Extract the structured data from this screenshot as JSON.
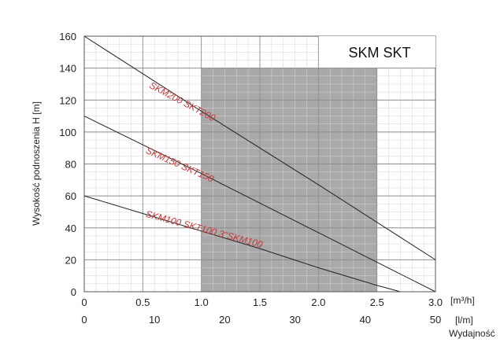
{
  "chart_data": {
    "type": "line",
    "title": "SKM SKT",
    "ylabel": "Wysokość podnoszenia H [m]",
    "xlabel": "Wydajność",
    "x_unit_top": "[m³/h]",
    "x_unit_bottom": "[l/m]",
    "xlim": [
      0,
      3.0
    ],
    "ylim": [
      0,
      160
    ],
    "grid": true,
    "y_ticks": [
      "0",
      "20",
      "40",
      "60",
      "80",
      "100",
      "120",
      "140",
      "160"
    ],
    "x_ticks_top": [
      "0",
      "0.5",
      "1.0",
      "1.5",
      "2.0",
      "2.5",
      "3.0"
    ],
    "x_ticks_bottom": [
      "0",
      "10",
      "20",
      "30",
      "40",
      "50"
    ],
    "shaded_range": {
      "x": [
        1.0,
        2.5
      ],
      "y": [
        0,
        140
      ],
      "color": "#a9a9a9"
    },
    "series": [
      {
        "name": "SKM200 SKT200",
        "x": [
          0,
          1.0,
          2.0,
          3.0
        ],
        "y": [
          160,
          113,
          67,
          20
        ],
        "label_angle": 28
      },
      {
        "name": "SKM150 SKT150",
        "x": [
          0,
          1.0,
          2.0,
          3.0
        ],
        "y": [
          110,
          74,
          37,
          0
        ],
        "label_angle": 24
      },
      {
        "name": "SKM100 SKT100  3\"SKM100",
        "x": [
          0,
          0.5,
          1.0,
          1.5,
          2.0,
          2.5,
          2.7
        ],
        "y": [
          60,
          49,
          38,
          27,
          15,
          4,
          0
        ],
        "label_angle": 15
      }
    ],
    "colors": {
      "line": "#222222",
      "series_label": "#c23b3b",
      "shade": "#a9a9a9",
      "grid_major": "#8c8c8c",
      "grid_minor": "#d6d6d6"
    }
  }
}
